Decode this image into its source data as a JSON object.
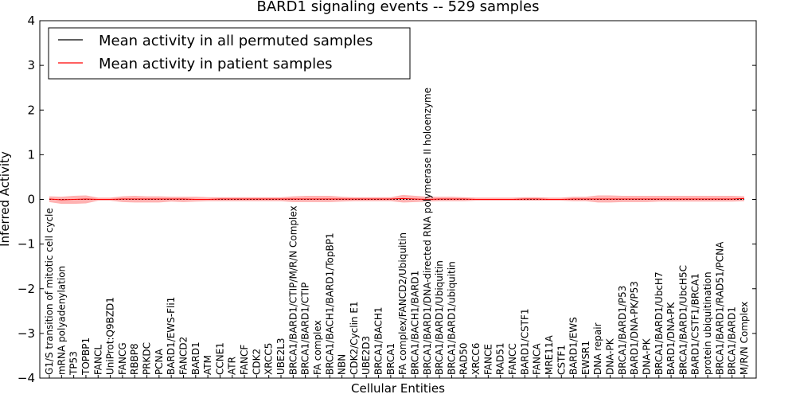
{
  "chart_data": {
    "type": "line",
    "title": "BARD1 signaling events -- 529 samples",
    "xlabel": "Cellular Entities",
    "ylabel": "Inferred Activity",
    "ylim": [
      -4,
      4
    ],
    "yticks": [
      -4,
      -3,
      -2,
      -1,
      0,
      1,
      2,
      3,
      4
    ],
    "ytick_labels": [
      "−4",
      "−3",
      "−2",
      "−1",
      "0",
      "1",
      "2",
      "3",
      "4"
    ],
    "legend": {
      "position": "top-left",
      "entries": [
        {
          "name": "Mean activity in all permuted samples",
          "color": "#000000"
        },
        {
          "name": "Mean activity in patient samples",
          "color": "#ff0000"
        }
      ]
    },
    "categories": [
      "G1/S transition of mitotic cell cycle",
      "mRNA polyadenylation",
      "TP53",
      "TOPBP1",
      "FANCL",
      "UniProt:Q9BZD1",
      "FANCG",
      "RBBP8",
      "PRKDC",
      "PCNA",
      "BARD1/EWS-Fli1",
      "FANCD2",
      "BARD1",
      "ATM",
      "CCNE1",
      "ATR",
      "FANCF",
      "CDK2",
      "XRCC5",
      "UBE2L3",
      "BRCA1/BARD1/CTIP/M/R/N Complex",
      "BRCA1/BARD1/CTIP",
      "FA complex",
      "BRCA1/BACH1/BARD1/TopBP1",
      "NBN",
      "CDK2/Cyclin E1",
      "UBE2D3",
      "BRCA1/BACH1",
      "BRCA1",
      "FA complex/FANCD2/Ubiquitin",
      "BRCA1/BACH1/BARD1",
      "BRCA1/BARD1/DNA-directed RNA polymerase II holoenzyme",
      "BRCA1/BARD1/Ubiquitin",
      "BRCA1/BARD1/ubiquitin",
      "RAD50",
      "XRCC6",
      "FANCE",
      "RAD51",
      "FANCC",
      "BARD1/CSTF1",
      "FANCA",
      "MRE11A",
      "CSTF1",
      "BARD1/EWS",
      "EWSR1",
      "DNA repair",
      "DNA-PK",
      "BRCA1/BARD1/P53",
      "BARD1/DNA-PK/P53",
      "DNA-PK",
      "BRCA1/BARD1/UbcH7",
      "BARD1/DNA-PK",
      "BRCA1/BARD1/UbcH5C",
      "BARD1/CSTF1/BRCA1",
      "protein ubiquitination",
      "BRCA1/BARD1/RAD51/PCNA",
      "BRCA1/BARD1",
      "M/R/N Complex"
    ],
    "series": [
      {
        "name": "Mean activity in all permuted samples",
        "color": "#000000",
        "values": [
          0,
          0,
          0,
          0,
          0,
          0,
          0,
          0,
          0,
          0,
          0,
          0,
          0,
          0,
          0,
          0,
          0,
          0,
          0,
          0,
          0,
          0,
          0,
          0,
          0,
          0,
          0,
          0,
          0,
          0,
          0,
          0,
          0,
          0,
          0,
          0,
          0,
          0,
          0,
          0,
          0,
          0,
          0,
          0,
          0,
          0,
          0,
          0,
          0,
          0,
          0,
          0,
          0,
          0,
          0,
          0,
          0,
          0
        ]
      },
      {
        "name": "Mean activity in patient samples",
        "color": "#ff0000",
        "values": [
          0.01,
          -0.01,
          0.0,
          0.01,
          0.0,
          0.0,
          0.01,
          0.01,
          0.01,
          0.01,
          0.01,
          0.01,
          0.0,
          0.0,
          0.01,
          0.01,
          0.01,
          0.01,
          0.01,
          0.01,
          0.01,
          0.01,
          0.01,
          0.01,
          0.01,
          0.01,
          0.01,
          0.01,
          0.01,
          0.02,
          0.01,
          0.0,
          0.01,
          0.01,
          0.01,
          0.0,
          0.0,
          0.0,
          0.0,
          0.01,
          0.01,
          0.0,
          0.0,
          0.01,
          0.01,
          0.01,
          0.01,
          0.01,
          0.01,
          0.01,
          0.01,
          0.01,
          0.01,
          0.01,
          0.01,
          0.01,
          0.01,
          0.02
        ],
        "band_low": [
          -0.06,
          -0.1,
          -0.1,
          -0.09,
          -0.03,
          -0.03,
          -0.06,
          -0.07,
          -0.07,
          -0.07,
          -0.05,
          -0.06,
          -0.05,
          -0.04,
          -0.04,
          -0.04,
          -0.04,
          -0.04,
          -0.04,
          -0.04,
          -0.06,
          -0.06,
          -0.06,
          -0.06,
          -0.05,
          -0.04,
          -0.04,
          -0.04,
          -0.04,
          -0.07,
          -0.06,
          -0.05,
          -0.04,
          -0.04,
          -0.04,
          -0.03,
          -0.03,
          -0.03,
          -0.03,
          -0.03,
          -0.03,
          -0.03,
          -0.03,
          -0.04,
          -0.04,
          -0.07,
          -0.07,
          -0.06,
          -0.06,
          -0.06,
          -0.05,
          -0.05,
          -0.05,
          -0.05,
          -0.05,
          -0.05,
          -0.05,
          -0.04
        ],
        "band_high": [
          0.07,
          0.06,
          0.08,
          0.09,
          0.04,
          0.04,
          0.07,
          0.08,
          0.07,
          0.07,
          0.06,
          0.06,
          0.06,
          0.05,
          0.05,
          0.05,
          0.05,
          0.05,
          0.05,
          0.05,
          0.07,
          0.08,
          0.08,
          0.08,
          0.06,
          0.05,
          0.05,
          0.05,
          0.05,
          0.1,
          0.08,
          0.06,
          0.06,
          0.06,
          0.05,
          0.04,
          0.04,
          0.04,
          0.04,
          0.05,
          0.05,
          0.04,
          0.04,
          0.06,
          0.06,
          0.09,
          0.09,
          0.08,
          0.08,
          0.08,
          0.08,
          0.08,
          0.08,
          0.08,
          0.08,
          0.08,
          0.08,
          0.07
        ]
      }
    ]
  }
}
